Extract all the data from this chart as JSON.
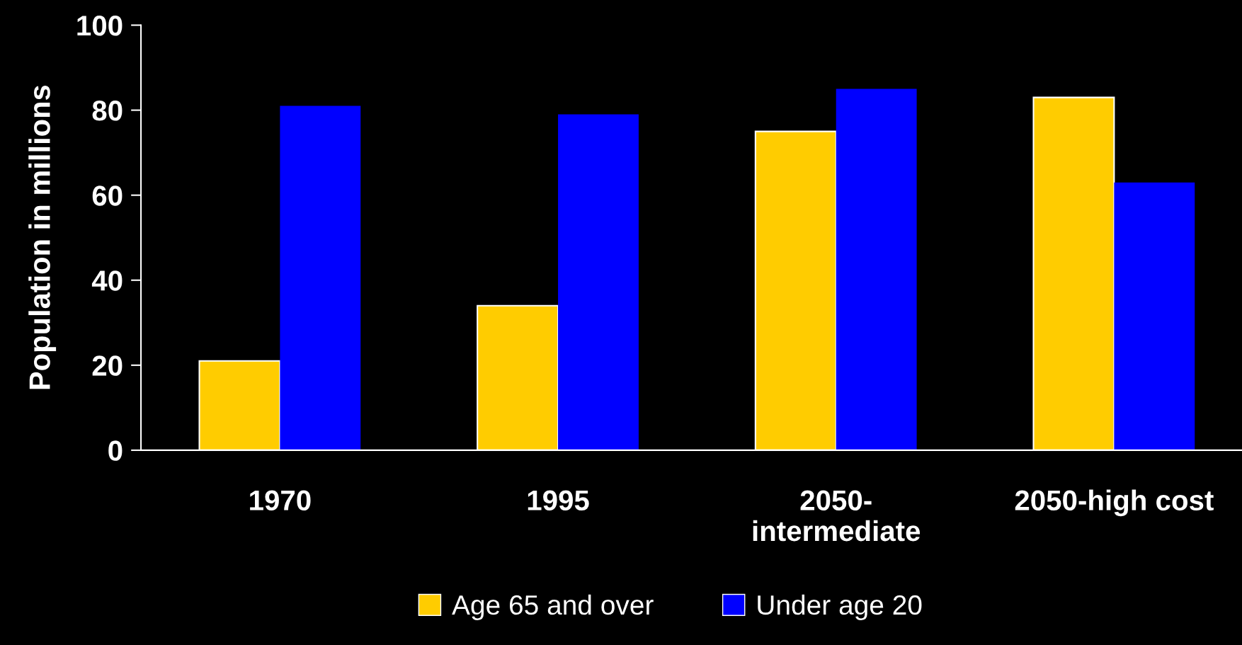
{
  "chart_data": {
    "type": "bar",
    "ylabel": "Population in millions",
    "categories": [
      "1970",
      "1995",
      "2050-\nintermediate",
      "2050-high cost"
    ],
    "series": [
      {
        "name": "Age 65 and over",
        "color": "#ffcc00",
        "values": [
          21,
          34,
          75,
          83
        ]
      },
      {
        "name": "Under age 20",
        "color": "#0000ff",
        "values": [
          81,
          79,
          85,
          63
        ]
      }
    ],
    "ylim": [
      0,
      100
    ],
    "yticks": [
      0,
      20,
      40,
      60,
      80,
      100
    ],
    "grid": false,
    "legend": "bottom"
  }
}
